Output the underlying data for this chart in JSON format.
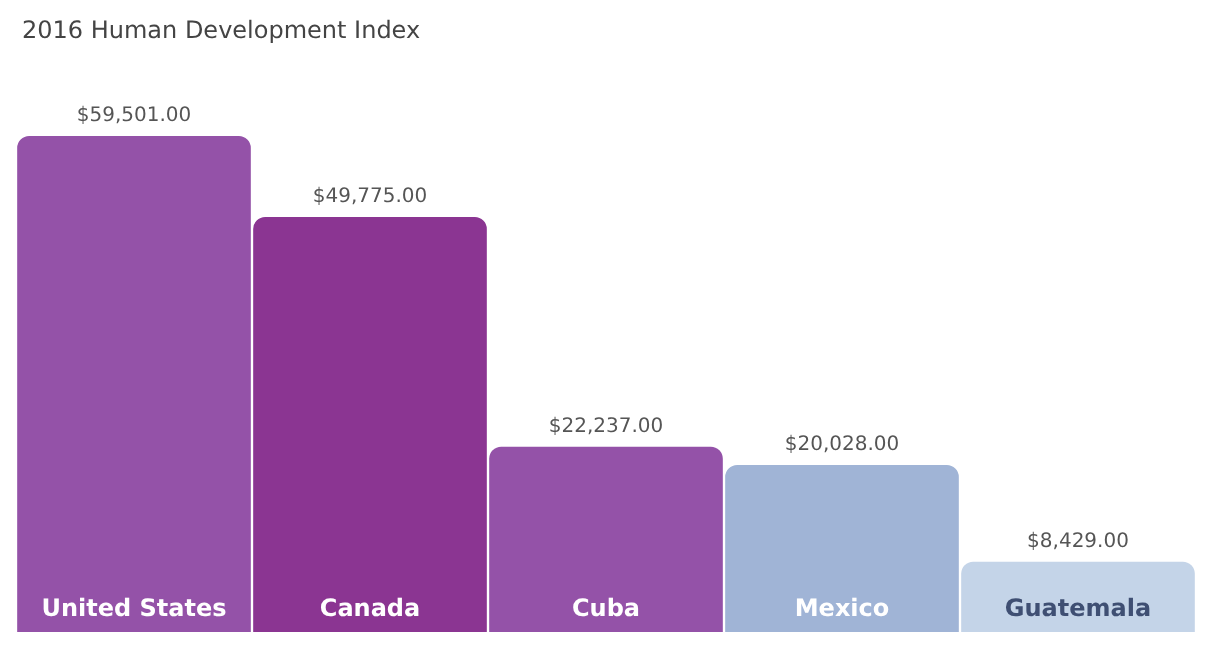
{
  "chart_data": {
    "type": "bar",
    "title": "2016 Human Development Index",
    "categories": [
      "United States",
      "Canada",
      "Cuba",
      "Mexico",
      "Guatemala"
    ],
    "values": [
      59501,
      49775,
      22237,
      20028,
      8429
    ],
    "colors": [
      "#9452a8",
      "#8b3592",
      "#9452a8",
      "#a0b4d6",
      "#c4d4e8"
    ],
    "value_labels": [
      "$59,501.00",
      "$49,775.00",
      "$22,237.00",
      "$20,028.00",
      "$8,429.00"
    ]
  }
}
